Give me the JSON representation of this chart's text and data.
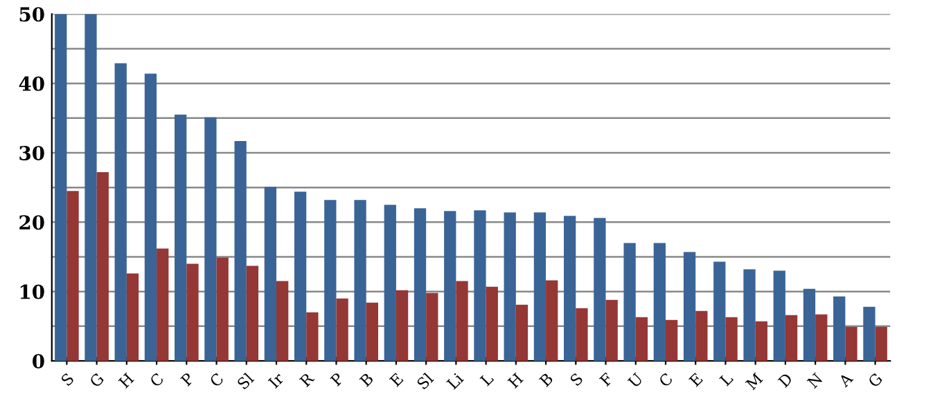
{
  "chart_data": {
    "type": "bar",
    "categories": [
      "S",
      "G",
      "H",
      "C",
      "P",
      "C",
      "Sl",
      "Ir",
      "R",
      "P",
      "B",
      "E",
      "Sl",
      "Li",
      "L",
      "H",
      "B",
      "S",
      "F",
      "U",
      "C",
      "E",
      "L",
      "M",
      "D",
      "N",
      "A",
      "G"
    ],
    "series": [
      {
        "color": "#3a6496",
        "values": [
          50,
          50,
          42.9,
          41.4,
          35.5,
          35.1,
          31.7,
          25.1,
          24.4,
          23.2,
          23.2,
          22.5,
          22.0,
          21.6,
          21.7,
          21.4,
          21.4,
          20.9,
          20.6,
          17.0,
          17.0,
          15.7,
          14.3,
          13.2,
          13.0,
          10.4,
          9.3,
          7.8
        ]
      },
      {
        "color": "#953735",
        "values": [
          24.5,
          27.2,
          12.6,
          16.2,
          14.0,
          14.9,
          13.7,
          11.5,
          7.0,
          9.0,
          8.4,
          10.2,
          9.8,
          11.5,
          10.7,
          8.1,
          11.6,
          7.6,
          8.8,
          6.3,
          5.9,
          7.2,
          6.3,
          5.7,
          6.6,
          6.7,
          4.9,
          4.9
        ]
      }
    ],
    "ylim": [
      0,
      50
    ],
    "yticks": [
      0,
      {
        "value": 5,
        "label": null
      },
      10,
      {
        "value": 15,
        "label": null
      },
      20,
      {
        "value": 25,
        "label": null
      },
      30,
      {
        "value": 35,
        "label": null
      },
      40,
      {
        "value": 45,
        "label": null
      },
      50
    ],
    "grid": "y",
    "legend": false
  }
}
